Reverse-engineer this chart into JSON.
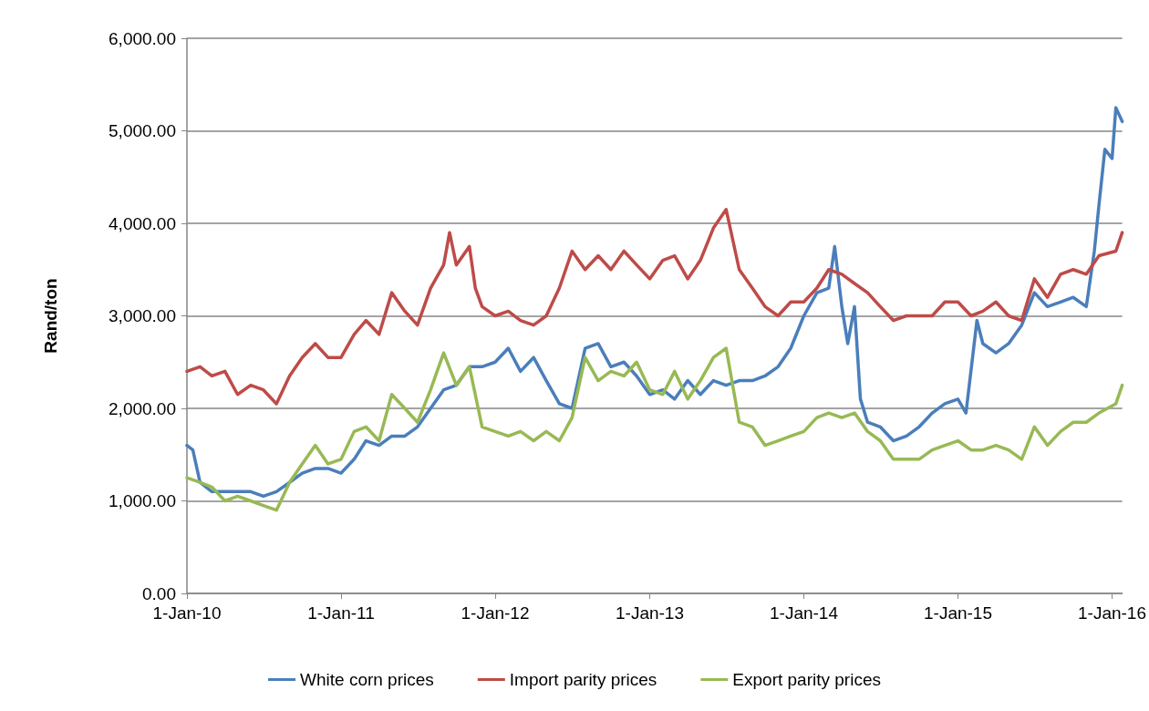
{
  "chart_data": {
    "type": "line",
    "ylabel": "Rand/ton",
    "xlim": [
      "2010-01-01",
      "2016-01-25"
    ],
    "xticks": [
      {
        "value": "2010-01-01",
        "label": "1-Jan-10"
      },
      {
        "value": "2011-01-01",
        "label": "1-Jan-11"
      },
      {
        "value": "2012-01-01",
        "label": "1-Jan-12"
      },
      {
        "value": "2013-01-01",
        "label": "1-Jan-13"
      },
      {
        "value": "2014-01-01",
        "label": "1-Jan-14"
      },
      {
        "value": "2015-01-01",
        "label": "1-Jan-15"
      },
      {
        "value": "2016-01-01",
        "label": "1-Jan-16"
      }
    ],
    "ylim": [
      0,
      6000
    ],
    "yticks": [
      {
        "value": 0,
        "label": "0.00"
      },
      {
        "value": 1000,
        "label": "1,000.00"
      },
      {
        "value": 2000,
        "label": "2,000.00"
      },
      {
        "value": 3000,
        "label": "3,000.00"
      },
      {
        "value": 4000,
        "label": "4,000.00"
      },
      {
        "value": 5000,
        "label": "5,000.00"
      },
      {
        "value": 6000,
        "label": "6,000.00"
      }
    ],
    "grid": "y",
    "legend": "bottom",
    "marker": "none",
    "line_style": "solid",
    "series": [
      {
        "name": "White corn prices",
        "color": "#4a7ebb",
        "x": [
          "2010-01-01",
          "2010-01-15",
          "2010-02-01",
          "2010-03-01",
          "2010-04-01",
          "2010-05-01",
          "2010-06-01",
          "2010-07-01",
          "2010-08-01",
          "2010-09-01",
          "2010-10-01",
          "2010-11-01",
          "2010-12-01",
          "2011-01-01",
          "2011-02-01",
          "2011-03-01",
          "2011-04-01",
          "2011-05-01",
          "2011-06-01",
          "2011-07-01",
          "2011-08-01",
          "2011-09-01",
          "2011-10-01",
          "2011-11-01",
          "2011-12-01",
          "2012-01-01",
          "2012-02-01",
          "2012-03-01",
          "2012-04-01",
          "2012-05-01",
          "2012-06-01",
          "2012-07-01",
          "2012-08-01",
          "2012-09-01",
          "2012-10-01",
          "2012-11-01",
          "2012-12-01",
          "2013-01-01",
          "2013-02-01",
          "2013-03-01",
          "2013-04-01",
          "2013-05-01",
          "2013-06-01",
          "2013-07-01",
          "2013-08-01",
          "2013-09-01",
          "2013-10-01",
          "2013-11-01",
          "2013-12-01",
          "2014-01-01",
          "2014-02-01",
          "2014-03-01",
          "2014-03-15",
          "2014-04-01",
          "2014-04-15",
          "2014-05-01",
          "2014-05-15",
          "2014-06-01",
          "2014-07-01",
          "2014-08-01",
          "2014-09-01",
          "2014-10-01",
          "2014-11-01",
          "2014-12-01",
          "2015-01-01",
          "2015-01-20",
          "2015-02-15",
          "2015-03-01",
          "2015-04-01",
          "2015-05-01",
          "2015-06-01",
          "2015-07-01",
          "2015-08-01",
          "2015-09-01",
          "2015-10-01",
          "2015-11-01",
          "2015-11-20",
          "2015-12-01",
          "2015-12-15",
          "2016-01-01",
          "2016-01-10",
          "2016-01-25"
        ],
        "values": [
          1600,
          1550,
          1200,
          1100,
          1100,
          1100,
          1100,
          1050,
          1100,
          1200,
          1300,
          1350,
          1350,
          1300,
          1450,
          1650,
          1600,
          1700,
          1700,
          1800,
          2000,
          2200,
          2250,
          2450,
          2450,
          2500,
          2650,
          2400,
          2550,
          2300,
          2050,
          2000,
          2650,
          2700,
          2450,
          2500,
          2350,
          2150,
          2200,
          2100,
          2300,
          2150,
          2300,
          2250,
          2300,
          2300,
          2350,
          2450,
          2650,
          3000,
          3250,
          3300,
          3750,
          3100,
          2700,
          3100,
          2100,
          1850,
          1800,
          1650,
          1700,
          1800,
          1950,
          2050,
          2100,
          1950,
          2950,
          2700,
          2600,
          2700,
          2900,
          3250,
          3100,
          3150,
          3200,
          3100,
          3700,
          4200,
          4800,
          4700,
          5250,
          5100
        ]
      },
      {
        "name": "Import parity prices",
        "color": "#be4b48",
        "x": [
          "2010-01-01",
          "2010-02-01",
          "2010-03-01",
          "2010-04-01",
          "2010-05-01",
          "2010-06-01",
          "2010-07-01",
          "2010-08-01",
          "2010-09-01",
          "2010-10-01",
          "2010-11-01",
          "2010-12-01",
          "2011-01-01",
          "2011-02-01",
          "2011-03-01",
          "2011-04-01",
          "2011-05-01",
          "2011-06-01",
          "2011-07-01",
          "2011-08-01",
          "2011-09-01",
          "2011-09-15",
          "2011-10-01",
          "2011-11-01",
          "2011-11-15",
          "2011-12-01",
          "2012-01-01",
          "2012-02-01",
          "2012-03-01",
          "2012-04-01",
          "2012-05-01",
          "2012-06-01",
          "2012-07-01",
          "2012-08-01",
          "2012-09-01",
          "2012-10-01",
          "2012-11-01",
          "2012-12-01",
          "2013-01-01",
          "2013-02-01",
          "2013-03-01",
          "2013-04-01",
          "2013-05-01",
          "2013-06-01",
          "2013-07-01",
          "2013-08-01",
          "2013-09-01",
          "2013-10-01",
          "2013-11-01",
          "2013-12-01",
          "2014-01-01",
          "2014-02-01",
          "2014-03-01",
          "2014-04-01",
          "2014-05-01",
          "2014-06-01",
          "2014-07-01",
          "2014-08-01",
          "2014-09-01",
          "2014-10-01",
          "2014-11-01",
          "2014-12-01",
          "2015-01-01",
          "2015-02-01",
          "2015-03-01",
          "2015-04-01",
          "2015-05-01",
          "2015-06-01",
          "2015-07-01",
          "2015-08-01",
          "2015-09-01",
          "2015-10-01",
          "2015-11-01",
          "2015-12-01",
          "2016-01-10",
          "2016-01-25"
        ],
        "values": [
          2400,
          2450,
          2350,
          2400,
          2150,
          2250,
          2200,
          2050,
          2350,
          2550,
          2700,
          2550,
          2550,
          2800,
          2950,
          2800,
          3250,
          3050,
          2900,
          3300,
          3550,
          3900,
          3550,
          3750,
          3300,
          3100,
          3000,
          3050,
          2950,
          2900,
          3000,
          3300,
          3700,
          3500,
          3650,
          3500,
          3700,
          3550,
          3400,
          3600,
          3650,
          3400,
          3600,
          3950,
          4150,
          3500,
          3300,
          3100,
          3000,
          3150,
          3150,
          3300,
          3500,
          3450,
          3350,
          3250,
          3100,
          2950,
          3000,
          3000,
          3000,
          3150,
          3150,
          3000,
          3050,
          3150,
          3000,
          2950,
          3400,
          3200,
          3450,
          3500,
          3450,
          3650,
          3700,
          3900
        ]
      },
      {
        "name": "Export parity prices",
        "color": "#98b954",
        "x": [
          "2010-01-01",
          "2010-02-01",
          "2010-03-01",
          "2010-04-01",
          "2010-05-01",
          "2010-06-01",
          "2010-07-01",
          "2010-08-01",
          "2010-09-01",
          "2010-10-01",
          "2010-11-01",
          "2010-12-01",
          "2011-01-01",
          "2011-02-01",
          "2011-03-01",
          "2011-04-01",
          "2011-05-01",
          "2011-06-01",
          "2011-07-01",
          "2011-08-01",
          "2011-09-01",
          "2011-10-01",
          "2011-11-01",
          "2011-12-01",
          "2012-01-01",
          "2012-02-01",
          "2012-03-01",
          "2012-04-01",
          "2012-05-01",
          "2012-06-01",
          "2012-07-01",
          "2012-08-01",
          "2012-09-01",
          "2012-10-01",
          "2012-11-01",
          "2012-12-01",
          "2013-01-01",
          "2013-02-01",
          "2013-03-01",
          "2013-04-01",
          "2013-05-01",
          "2013-06-01",
          "2013-07-01",
          "2013-08-01",
          "2013-09-01",
          "2013-10-01",
          "2013-11-01",
          "2013-12-01",
          "2014-01-01",
          "2014-02-01",
          "2014-03-01",
          "2014-04-01",
          "2014-05-01",
          "2014-06-01",
          "2014-07-01",
          "2014-08-01",
          "2014-09-01",
          "2014-10-01",
          "2014-11-01",
          "2014-12-01",
          "2015-01-01",
          "2015-02-01",
          "2015-03-01",
          "2015-04-01",
          "2015-05-01",
          "2015-06-01",
          "2015-07-01",
          "2015-08-01",
          "2015-09-01",
          "2015-10-01",
          "2015-11-01",
          "2015-12-01",
          "2016-01-10",
          "2016-01-25"
        ],
        "values": [
          1250,
          1200,
          1150,
          1000,
          1050,
          1000,
          950,
          900,
          1200,
          1400,
          1600,
          1400,
          1450,
          1750,
          1800,
          1650,
          2150,
          2000,
          1850,
          2200,
          2600,
          2250,
          2450,
          1800,
          1750,
          1700,
          1750,
          1650,
          1750,
          1650,
          1900,
          2550,
          2300,
          2400,
          2350,
          2500,
          2200,
          2150,
          2400,
          2100,
          2300,
          2550,
          2650,
          1850,
          1800,
          1600,
          1650,
          1700,
          1750,
          1900,
          1950,
          1900,
          1950,
          1750,
          1650,
          1450,
          1450,
          1450,
          1550,
          1600,
          1650,
          1550,
          1550,
          1600,
          1550,
          1450,
          1800,
          1600,
          1750,
          1850,
          1850,
          1950,
          2050,
          2250
        ]
      }
    ]
  }
}
